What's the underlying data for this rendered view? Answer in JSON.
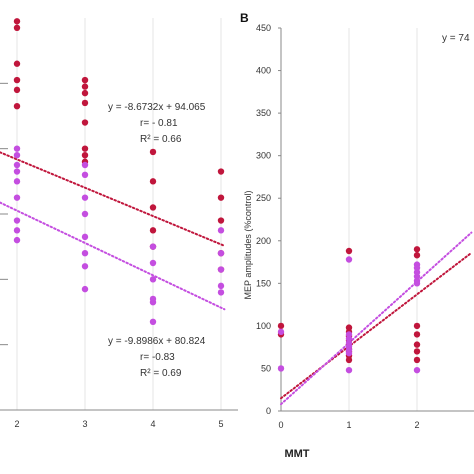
{
  "chart_data": [
    {
      "type": "scatter",
      "panel_label": "",
      "xlabel": "",
      "ylabel": "",
      "xticks": [
        "2",
        "3",
        "4",
        "5"
      ],
      "xlim": [
        1.75,
        5.05
      ],
      "ylim": [
        0,
        120
      ],
      "series": [
        {
          "color": "#c0163c",
          "points": [
            [
              2,
              119
            ],
            [
              2,
              117
            ],
            [
              2,
              106
            ],
            [
              2,
              101
            ],
            [
              2,
              98
            ],
            [
              2,
              93
            ],
            [
              3,
              101
            ],
            [
              3,
              99
            ],
            [
              3,
              97
            ],
            [
              3,
              94
            ],
            [
              3,
              88
            ],
            [
              3,
              80
            ],
            [
              3,
              78
            ],
            [
              3,
              76
            ],
            [
              4,
              79
            ],
            [
              4,
              70
            ],
            [
              4,
              62
            ],
            [
              4,
              55
            ],
            [
              4,
              50
            ],
            [
              5,
              73
            ],
            [
              5,
              65
            ],
            [
              5,
              58
            ],
            [
              5,
              48
            ],
            [
              5,
              43
            ]
          ]
        },
        {
          "color": "#c44ee0",
          "points": [
            [
              2,
              80
            ],
            [
              2,
              78
            ],
            [
              2,
              75
            ],
            [
              2,
              73
            ],
            [
              2,
              70
            ],
            [
              2,
              65
            ],
            [
              2,
              58
            ],
            [
              2,
              55
            ],
            [
              2,
              52
            ],
            [
              3,
              75
            ],
            [
              3,
              72
            ],
            [
              3,
              65
            ],
            [
              3,
              60
            ],
            [
              3,
              53
            ],
            [
              3,
              48
            ],
            [
              3,
              44
            ],
            [
              3,
              37
            ],
            [
              4,
              50
            ],
            [
              4,
              45
            ],
            [
              4,
              40
            ],
            [
              4,
              34
            ],
            [
              4,
              33
            ],
            [
              4,
              27
            ],
            [
              5,
              55
            ],
            [
              5,
              48
            ],
            [
              5,
              43
            ],
            [
              5,
              38
            ],
            [
              5,
              36
            ]
          ]
        }
      ],
      "trendlines": [
        {
          "color": "#c0163c",
          "slope": -8.6732,
          "intercept": 94.065,
          "x_range": [
            1.75,
            5.05
          ],
          "lines": [
            "y = -8.6732x + 94.065",
            "r= - 0.81",
            "R² = 0.66"
          ]
        },
        {
          "color": "#c44ee0",
          "slope": -9.8986,
          "intercept": 80.824,
          "x_range": [
            1.75,
            5.05
          ],
          "lines": [
            "y = -9.8986x + 80.824",
            "r= -0.83",
            "R² = 0.69"
          ]
        }
      ]
    },
    {
      "type": "scatter",
      "panel_label": "B",
      "xlabel": "MMT",
      "ylabel": "MEP amplitudes (%control)",
      "xticks": [
        "0",
        "1",
        "2"
      ],
      "yticks": [
        "0",
        "50",
        "100",
        "150",
        "200",
        "250",
        "300",
        "350",
        "400",
        "450"
      ],
      "xlim": [
        0,
        2.8
      ],
      "ylim": [
        0,
        450
      ],
      "series": [
        {
          "color": "#c0163c",
          "points": [
            [
              0,
              100
            ],
            [
              0,
              90
            ],
            [
              1,
              188
            ],
            [
              1,
              98
            ],
            [
              1,
              93
            ],
            [
              1,
              88
            ],
            [
              1,
              83
            ],
            [
              1,
              78
            ],
            [
              1,
              73
            ],
            [
              1,
              70
            ],
            [
              1,
              65
            ],
            [
              1,
              60
            ],
            [
              2,
              190
            ],
            [
              2,
              183
            ],
            [
              2,
              100
            ],
            [
              2,
              90
            ],
            [
              2,
              78
            ],
            [
              2,
              70
            ],
            [
              2,
              60
            ]
          ]
        },
        {
          "color": "#c44ee0",
          "points": [
            [
              0,
              93
            ],
            [
              0,
              50
            ],
            [
              1,
              178
            ],
            [
              1,
              90
            ],
            [
              1,
              85
            ],
            [
              1,
              80
            ],
            [
              1,
              76
            ],
            [
              1,
              72
            ],
            [
              1,
              68
            ],
            [
              1,
              48
            ],
            [
              2,
              172
            ],
            [
              2,
              168
            ],
            [
              2,
              163
            ],
            [
              2,
              158
            ],
            [
              2,
              153
            ],
            [
              2,
              150
            ],
            [
              2,
              48
            ]
          ]
        }
      ],
      "trendlines": [
        {
          "color": "#c0163c",
          "slope": 61,
          "intercept": 15,
          "x_range": [
            0,
            2.8
          ]
        },
        {
          "color": "#c44ee0",
          "slope": 72,
          "intercept": 8,
          "x_range": [
            0,
            2.8
          ],
          "lines": [
            "y = 74"
          ]
        }
      ]
    }
  ]
}
